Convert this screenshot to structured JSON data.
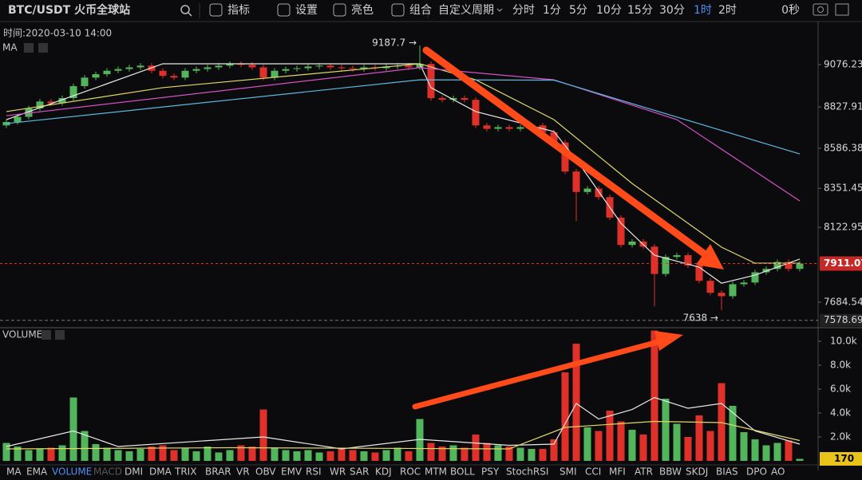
{
  "toolbar": {
    "symbol": "BTC/USDT 火币全球站",
    "tools": [
      "指标",
      "设置",
      "亮色",
      "组合"
    ],
    "custom_period": "自定义周期",
    "timeframes": [
      "分时",
      "1分",
      "5分",
      "10分",
      "15分",
      "30分",
      "1时",
      "2时"
    ],
    "active_timeframe": 6,
    "countdown": "0秒"
  },
  "info": {
    "time": "时间:2020-03-10 14:00",
    "price_indicator": "MA",
    "volume_indicator": "VOLUME"
  },
  "indicators": {
    "tabs": [
      "MA",
      "EMA",
      "VOLUME",
      "MACD",
      "DMI",
      "DMA",
      "TRIX",
      "BRAR",
      "VR",
      "OBV",
      "EMV",
      "RSI",
      "WR",
      "SAR",
      "KDJ",
      "ROC",
      "MTM",
      "BOLL",
      "PSY",
      "StochRSI",
      "SMI",
      "CCI",
      "MFI",
      "ATR",
      "BBW",
      "SKDJ",
      "BIAS",
      "DPO",
      "AO"
    ],
    "active": 2,
    "disabled": 3
  },
  "chart_data": [
    {
      "type": "candlestick",
      "up_color": "#53b55b",
      "down_color": "#e0302a",
      "open": [
        8720,
        8740,
        8770,
        8820,
        8860,
        8850,
        8880,
        8950,
        9000,
        9020,
        9040,
        9050,
        9060,
        9070,
        9040,
        9010,
        9000,
        9040,
        9050,
        9060,
        9070,
        9080,
        9075,
        9060,
        9000,
        9040,
        9050,
        9055,
        9065,
        9070,
        9060,
        9055,
        9050,
        9060,
        9055,
        9065,
        9070,
        9060,
        9080,
        8880,
        8870,
        8880,
        8870,
        8720,
        8700,
        8710,
        8700,
        8710,
        8720,
        8680,
        8620,
        8450,
        8330,
        8350,
        8300,
        8180,
        8020,
        8040,
        8010,
        7850,
        7950,
        7960,
        7900,
        7810,
        7740,
        7720,
        7790,
        7800,
        7860,
        7880,
        7920,
        7880
      ],
      "high": [
        8755,
        8785,
        8835,
        8875,
        8875,
        8895,
        8965,
        9015,
        9035,
        9055,
        9065,
        9075,
        9085,
        9085,
        9055,
        9025,
        9055,
        9065,
        9075,
        9085,
        9095,
        9095,
        9090,
        9075,
        9055,
        9065,
        9070,
        9080,
        9085,
        9085,
        9075,
        9070,
        9075,
        9075,
        9080,
        9085,
        9085,
        9187.7,
        9095,
        8895,
        8895,
        8895,
        8885,
        8735,
        8725,
        8725,
        8725,
        8735,
        8735,
        8695,
        8635,
        8465,
        8365,
        8365,
        8315,
        8195,
        8055,
        8055,
        8025,
        7965,
        7975,
        7975,
        7915,
        7825,
        7755,
        7805,
        7815,
        7875,
        7895,
        7935,
        7935,
        7926
      ],
      "low": [
        8705,
        8725,
        8755,
        8805,
        8835,
        8835,
        8865,
        8935,
        8985,
        9005,
        9025,
        9035,
        9045,
        9025,
        8995,
        8985,
        8985,
        9025,
        9035,
        9045,
        9055,
        9060,
        9045,
        8985,
        8985,
        9025,
        9035,
        9040,
        9050,
        9045,
        9040,
        9035,
        9035,
        9040,
        9040,
        9050,
        9045,
        9045,
        8865,
        8855,
        8855,
        8855,
        8705,
        8685,
        8685,
        8685,
        8685,
        8695,
        8665,
        8605,
        8435,
        8160,
        8315,
        8285,
        8165,
        8005,
        8005,
        7995,
        7660,
        7835,
        7935,
        7885,
        7795,
        7725,
        7638,
        7705,
        7775,
        7785,
        7845,
        7865,
        7865,
        7865
      ],
      "close": [
        8740,
        8770,
        8820,
        8860,
        8850,
        8880,
        8950,
        9000,
        9020,
        9040,
        9050,
        9060,
        9070,
        9040,
        9010,
        9000,
        9040,
        9050,
        9060,
        9070,
        9080,
        9075,
        9060,
        9000,
        9040,
        9050,
        9055,
        9065,
        9070,
        9060,
        9055,
        9050,
        9060,
        9055,
        9065,
        9070,
        9060,
        9080,
        8880,
        8870,
        8880,
        8870,
        8720,
        8700,
        8710,
        8700,
        8710,
        8720,
        8680,
        8620,
        8450,
        8330,
        8350,
        8300,
        8180,
        8020,
        8040,
        8010,
        7850,
        7950,
        7960,
        7900,
        7810,
        7740,
        7720,
        7790,
        7800,
        7860,
        7880,
        7920,
        7880,
        7911.07
      ],
      "ylim": [
        7540,
        9305
      ],
      "yticks": [
        7684.54,
        8122.95,
        8351.45,
        8586.38,
        8827.91,
        9076.23
      ],
      "max_label": {
        "value": 9187.7,
        "label": "9187.7 →"
      },
      "min_label": {
        "value": 7638,
        "label": "7638 →"
      },
      "guide_line": 7578.69,
      "ma_lines": [
        {
          "color": "#e8e8e8",
          "x": [
            0,
            7,
            14,
            37,
            38,
            42,
            49,
            51,
            55,
            58,
            62,
            64,
            67,
            71
          ],
          "values": [
            8754,
            8917,
            9081,
            9081,
            8941,
            8801,
            8684,
            8520,
            8147,
            7960,
            7890,
            7796,
            7843,
            7937
          ]
        },
        {
          "color": "#e0d86a",
          "x": [
            0,
            14,
            37,
            42,
            49,
            56,
            64,
            67,
            71
          ],
          "values": [
            8801,
            8941,
            9081,
            8987,
            8754,
            8380,
            8007,
            7913,
            7913
          ]
        },
        {
          "color": "#d650c8",
          "x": [
            0,
            37,
            49,
            60,
            71
          ],
          "values": [
            8777,
            9058,
            8987,
            8754,
            8278
          ]
        },
        {
          "color": "#5bb8e0",
          "x": [
            0,
            37,
            49,
            71
          ],
          "values": [
            8731,
            8987,
            8985,
            8553
          ]
        }
      ]
    },
    {
      "type": "bar",
      "values": [
        1500,
        1200,
        900,
        1000,
        1100,
        1300,
        5300,
        2500,
        1400,
        1100,
        900,
        800,
        1000,
        1200,
        1300,
        900,
        1100,
        800,
        1200,
        700,
        900,
        1300,
        1200,
        4300,
        1100,
        900,
        800,
        900,
        700,
        800,
        1000,
        900,
        800,
        700,
        900,
        1100,
        800,
        3500,
        1500,
        1200,
        1300,
        1100,
        2200,
        1500,
        1300,
        1200,
        1100,
        1000,
        1000,
        1800,
        7400,
        9800,
        2800,
        2500,
        4200,
        3300,
        2600,
        2200,
        10900,
        5200,
        3100,
        2000,
        3800,
        2500,
        6500,
        4600,
        2400,
        1800,
        1300,
        1500,
        1700,
        170
      ],
      "ylim": [
        0,
        11070
      ],
      "yticks": [
        {
          "value": 2000,
          "label": "2.0k"
        },
        {
          "value": 4000,
          "label": "4.0k"
        },
        {
          "value": 6000,
          "label": "6.0k"
        },
        {
          "value": 8000,
          "label": "8.0k"
        },
        {
          "value": 10000,
          "label": "10.0k"
        }
      ],
      "ma_lines": [
        {
          "color": "#e8e8e8",
          "x": [
            0,
            6,
            10,
            23,
            30,
            37,
            45,
            49,
            51,
            53,
            56,
            58,
            61,
            64,
            67,
            71
          ],
          "values": [
            1200,
            2500,
            1200,
            2000,
            1000,
            1800,
            1300,
            1400,
            4800,
            3500,
            4300,
            5300,
            4400,
            4800,
            2500,
            1400
          ]
        },
        {
          "color": "#e0d86a",
          "x": [
            0,
            20,
            45,
            50,
            58,
            64,
            71
          ],
          "values": [
            1000,
            1100,
            1000,
            2800,
            3300,
            3200,
            1700
          ]
        }
      ]
    }
  ]
}
